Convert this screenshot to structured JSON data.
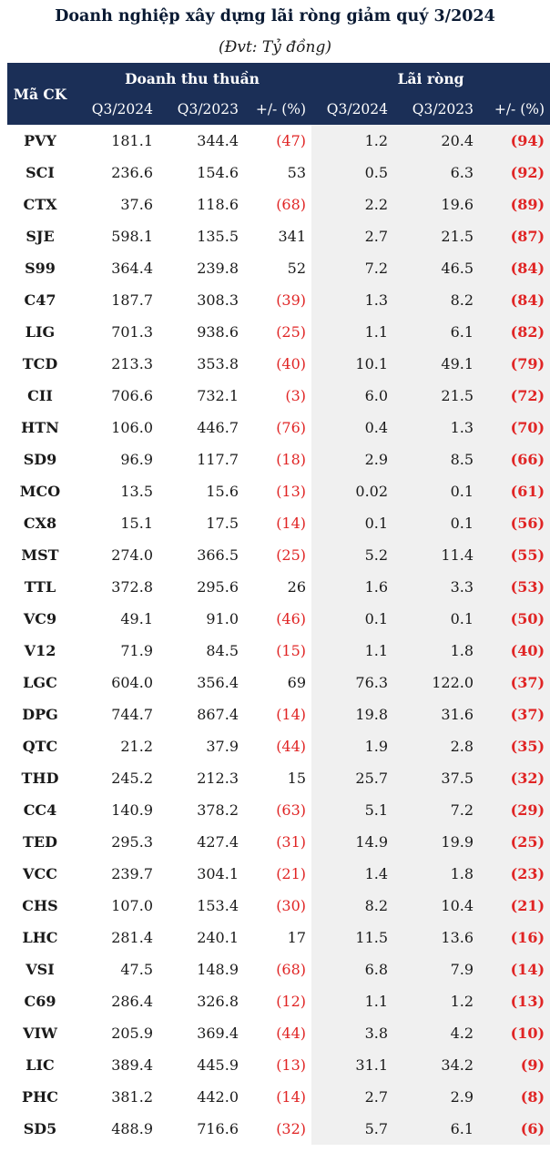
{
  "title": "Doanh nghiệp xây dựng lãi ròng giảm quý 3/2024",
  "unit": "(Đvt: Tỷ đồng)",
  "header": {
    "code": "Mã CK",
    "revenue_group": "Doanh thu thuần",
    "profit_group": "Lãi ròng",
    "q3_2024": "Q3/2024",
    "q3_2023": "Q3/2023",
    "change": "+/- (%)"
  },
  "rows": [
    {
      "code": "PVY",
      "rev24": "181.1",
      "rev23": "344.4",
      "revchg": "(47)",
      "np24": "1.2",
      "np23": "20.4",
      "npchg": "(94)"
    },
    {
      "code": "SCI",
      "rev24": "236.6",
      "rev23": "154.6",
      "revchg": "53",
      "np24": "0.5",
      "np23": "6.3",
      "npchg": "(92)"
    },
    {
      "code": "CTX",
      "rev24": "37.6",
      "rev23": "118.6",
      "revchg": "(68)",
      "np24": "2.2",
      "np23": "19.6",
      "npchg": "(89)"
    },
    {
      "code": "SJE",
      "rev24": "598.1",
      "rev23": "135.5",
      "revchg": "341",
      "np24": "2.7",
      "np23": "21.5",
      "npchg": "(87)"
    },
    {
      "code": "S99",
      "rev24": "364.4",
      "rev23": "239.8",
      "revchg": "52",
      "np24": "7.2",
      "np23": "46.5",
      "npchg": "(84)"
    },
    {
      "code": "C47",
      "rev24": "187.7",
      "rev23": "308.3",
      "revchg": "(39)",
      "np24": "1.3",
      "np23": "8.2",
      "npchg": "(84)"
    },
    {
      "code": "LIG",
      "rev24": "701.3",
      "rev23": "938.6",
      "revchg": "(25)",
      "np24": "1.1",
      "np23": "6.1",
      "npchg": "(82)"
    },
    {
      "code": "TCD",
      "rev24": "213.3",
      "rev23": "353.8",
      "revchg": "(40)",
      "np24": "10.1",
      "np23": "49.1",
      "npchg": "(79)"
    },
    {
      "code": "CII",
      "rev24": "706.6",
      "rev23": "732.1",
      "revchg": "(3)",
      "np24": "6.0",
      "np23": "21.5",
      "npchg": "(72)"
    },
    {
      "code": "HTN",
      "rev24": "106.0",
      "rev23": "446.7",
      "revchg": "(76)",
      "np24": "0.4",
      "np23": "1.3",
      "npchg": "(70)"
    },
    {
      "code": "SD9",
      "rev24": "96.9",
      "rev23": "117.7",
      "revchg": "(18)",
      "np24": "2.9",
      "np23": "8.5",
      "npchg": "(66)"
    },
    {
      "code": "MCO",
      "rev24": "13.5",
      "rev23": "15.6",
      "revchg": "(13)",
      "np24": "0.02",
      "np23": "0.1",
      "npchg": "(61)"
    },
    {
      "code": "CX8",
      "rev24": "15.1",
      "rev23": "17.5",
      "revchg": "(14)",
      "np24": "0.1",
      "np23": "0.1",
      "npchg": "(56)"
    },
    {
      "code": "MST",
      "rev24": "274.0",
      "rev23": "366.5",
      "revchg": "(25)",
      "np24": "5.2",
      "np23": "11.4",
      "npchg": "(55)"
    },
    {
      "code": "TTL",
      "rev24": "372.8",
      "rev23": "295.6",
      "revchg": "26",
      "np24": "1.6",
      "np23": "3.3",
      "npchg": "(53)"
    },
    {
      "code": "VC9",
      "rev24": "49.1",
      "rev23": "91.0",
      "revchg": "(46)",
      "np24": "0.1",
      "np23": "0.1",
      "npchg": "(50)"
    },
    {
      "code": "V12",
      "rev24": "71.9",
      "rev23": "84.5",
      "revchg": "(15)",
      "np24": "1.1",
      "np23": "1.8",
      "npchg": "(40)"
    },
    {
      "code": "LGC",
      "rev24": "604.0",
      "rev23": "356.4",
      "revchg": "69",
      "np24": "76.3",
      "np23": "122.0",
      "npchg": "(37)"
    },
    {
      "code": "DPG",
      "rev24": "744.7",
      "rev23": "867.4",
      "revchg": "(14)",
      "np24": "19.8",
      "np23": "31.6",
      "npchg": "(37)"
    },
    {
      "code": "QTC",
      "rev24": "21.2",
      "rev23": "37.9",
      "revchg": "(44)",
      "np24": "1.9",
      "np23": "2.8",
      "npchg": "(35)"
    },
    {
      "code": "THD",
      "rev24": "245.2",
      "rev23": "212.3",
      "revchg": "15",
      "np24": "25.7",
      "np23": "37.5",
      "npchg": "(32)"
    },
    {
      "code": "CC4",
      "rev24": "140.9",
      "rev23": "378.2",
      "revchg": "(63)",
      "np24": "5.1",
      "np23": "7.2",
      "npchg": "(29)"
    },
    {
      "code": "TED",
      "rev24": "295.3",
      "rev23": "427.4",
      "revchg": "(31)",
      "np24": "14.9",
      "np23": "19.9",
      "npchg": "(25)"
    },
    {
      "code": "VCC",
      "rev24": "239.7",
      "rev23": "304.1",
      "revchg": "(21)",
      "np24": "1.4",
      "np23": "1.8",
      "npchg": "(23)"
    },
    {
      "code": "CHS",
      "rev24": "107.0",
      "rev23": "153.4",
      "revchg": "(30)",
      "np24": "8.2",
      "np23": "10.4",
      "npchg": "(21)"
    },
    {
      "code": "LHC",
      "rev24": "281.4",
      "rev23": "240.1",
      "revchg": "17",
      "np24": "11.5",
      "np23": "13.6",
      "npchg": "(16)"
    },
    {
      "code": "VSI",
      "rev24": "47.5",
      "rev23": "148.9",
      "revchg": "(68)",
      "np24": "6.8",
      "np23": "7.9",
      "npchg": "(14)"
    },
    {
      "code": "C69",
      "rev24": "286.4",
      "rev23": "326.8",
      "revchg": "(12)",
      "np24": "1.1",
      "np23": "1.2",
      "npchg": "(13)"
    },
    {
      "code": "VIW",
      "rev24": "205.9",
      "rev23": "369.4",
      "revchg": "(44)",
      "np24": "3.8",
      "np23": "4.2",
      "npchg": "(10)"
    },
    {
      "code": "LIC",
      "rev24": "389.4",
      "rev23": "445.9",
      "revchg": "(13)",
      "np24": "31.1",
      "np23": "34.2",
      "npchg": "(9)"
    },
    {
      "code": "PHC",
      "rev24": "381.2",
      "rev23": "442.0",
      "revchg": "(14)",
      "np24": "2.7",
      "np23": "2.9",
      "npchg": "(8)"
    },
    {
      "code": "SD5",
      "rev24": "488.9",
      "rev23": "716.6",
      "revchg": "(32)",
      "np24": "5.7",
      "np23": "6.1",
      "npchg": "(6)"
    }
  ]
}
